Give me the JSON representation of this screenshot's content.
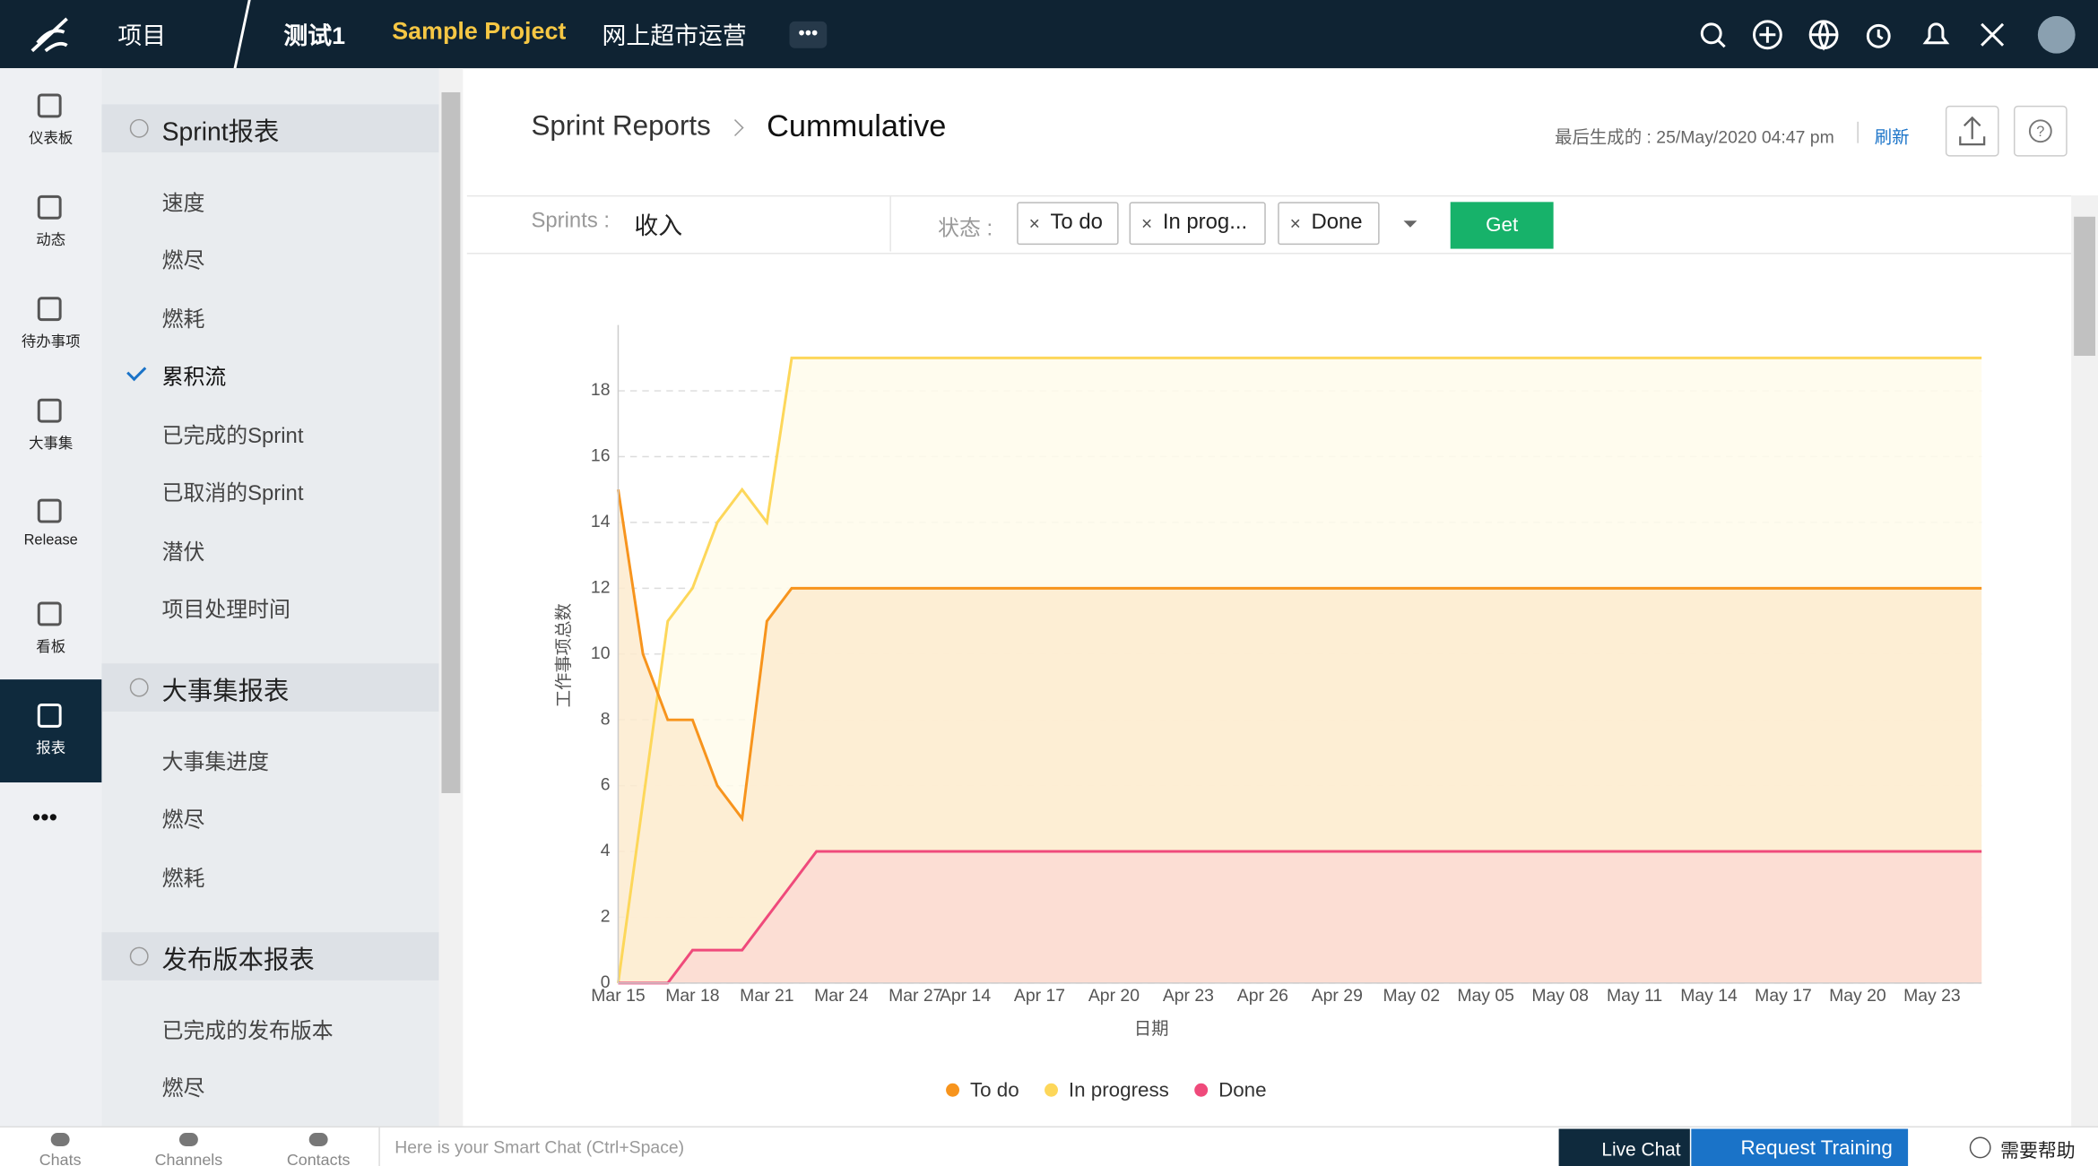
{
  "top_nav": {
    "items": [
      "项目",
      "测试1",
      "Sample Project",
      "网上超市运营"
    ]
  },
  "left_rail": {
    "items": [
      "仪表板",
      "动态",
      "待办事项",
      "大事集",
      "Release",
      "看板",
      "报表"
    ]
  },
  "sidebar": {
    "sections": [
      {
        "title": "Sprint报表",
        "items": [
          "速度",
          "燃尽",
          "燃耗",
          "累积流",
          "已完成的Sprint",
          "已取消的Sprint",
          "潜伏",
          "项目处理时间"
        ]
      },
      {
        "title": "大事集报表",
        "items": [
          "大事集进度",
          "燃尽",
          "燃耗"
        ]
      },
      {
        "title": "发布版本报表",
        "items": [
          "已完成的发布版本",
          "燃尽"
        ]
      }
    ]
  },
  "header": {
    "breadcrumb": "Sprint Reports",
    "current": "Cummulative",
    "last_generated": "最后生成的 : 25/May/2020 04:47 pm",
    "refresh": "刷新"
  },
  "filter": {
    "sprints_label": "Sprints :",
    "sprint": "收入",
    "status_label": "状态 :",
    "chips": [
      "To do",
      "In prog...",
      "Done"
    ],
    "button": "Get"
  },
  "bottom_bar": {
    "tabs": [
      "Chats",
      "Channels",
      "Contacts"
    ],
    "chat_placeholder": "Here is your Smart Chat (Ctrl+Space)",
    "live_chat": "Live Chat",
    "request_training": "Request Training",
    "help": "需要帮助"
  },
  "chart_data": {
    "type": "area",
    "x_label": "日期",
    "y_label": "工作事项总数",
    "categories": [
      "Mar 15",
      null,
      null,
      "Mar 18",
      null,
      null,
      "Mar 21",
      null,
      null,
      "Mar 24",
      null,
      null,
      "Mar 27",
      null,
      "Apr 14",
      null,
      null,
      "Apr 17",
      null,
      null,
      "Apr 20",
      null,
      null,
      "Apr 23",
      null,
      null,
      "Apr 26",
      null,
      null,
      "Apr 29",
      null,
      null,
      "May 02",
      null,
      null,
      "May 05",
      null,
      null,
      "May 08",
      null,
      null,
      "May 11",
      null,
      null,
      "May 14",
      null,
      null,
      "May 17",
      null,
      null,
      "May 20",
      null,
      null,
      "May 23",
      null,
      null
    ],
    "series": [
      {
        "name": "In progress",
        "color": "#fdd75a",
        "fill": "#fffbeb",
        "values": [
          0,
          5.5,
          11,
          12,
          14,
          15,
          14,
          19,
          19,
          19,
          19,
          19,
          19,
          19,
          19,
          19,
          19,
          19,
          19,
          19,
          19,
          19,
          19,
          19,
          19,
          19,
          19,
          19,
          19,
          19,
          19,
          19,
          19,
          19,
          19,
          19,
          19,
          19,
          19,
          19,
          19,
          19,
          19,
          19,
          19,
          19,
          19,
          19,
          19,
          19,
          19,
          19,
          19,
          19,
          19,
          19
        ]
      },
      {
        "name": "To do",
        "color": "#f7941d",
        "fill": "#fdebcf",
        "values": [
          15,
          10,
          8,
          8,
          6,
          5,
          11,
          12,
          12,
          12,
          12,
          12,
          12,
          12,
          12,
          12,
          12,
          12,
          12,
          12,
          12,
          12,
          12,
          12,
          12,
          12,
          12,
          12,
          12,
          12,
          12,
          12,
          12,
          12,
          12,
          12,
          12,
          12,
          12,
          12,
          12,
          12,
          12,
          12,
          12,
          12,
          12,
          12,
          12,
          12,
          12,
          12,
          12,
          12,
          12,
          12
        ]
      },
      {
        "name": "Done",
        "color": "#ef4a7b",
        "fill": "#fcdad3",
        "values": [
          0,
          0,
          0,
          1,
          1,
          1,
          2,
          3,
          4,
          4,
          4,
          4,
          4,
          4,
          4,
          4,
          4,
          4,
          4,
          4,
          4,
          4,
          4,
          4,
          4,
          4,
          4,
          4,
          4,
          4,
          4,
          4,
          4,
          4,
          4,
          4,
          4,
          4,
          4,
          4,
          4,
          4,
          4,
          4,
          4,
          4,
          4,
          4,
          4,
          4,
          4,
          4,
          4,
          4,
          4,
          4
        ]
      }
    ],
    "legend_order": [
      1,
      0,
      2
    ],
    "ylim": [
      0,
      20
    ],
    "yticks": [
      0,
      2,
      4,
      6,
      8,
      10,
      12,
      14,
      16,
      18
    ],
    "grid": true
  }
}
